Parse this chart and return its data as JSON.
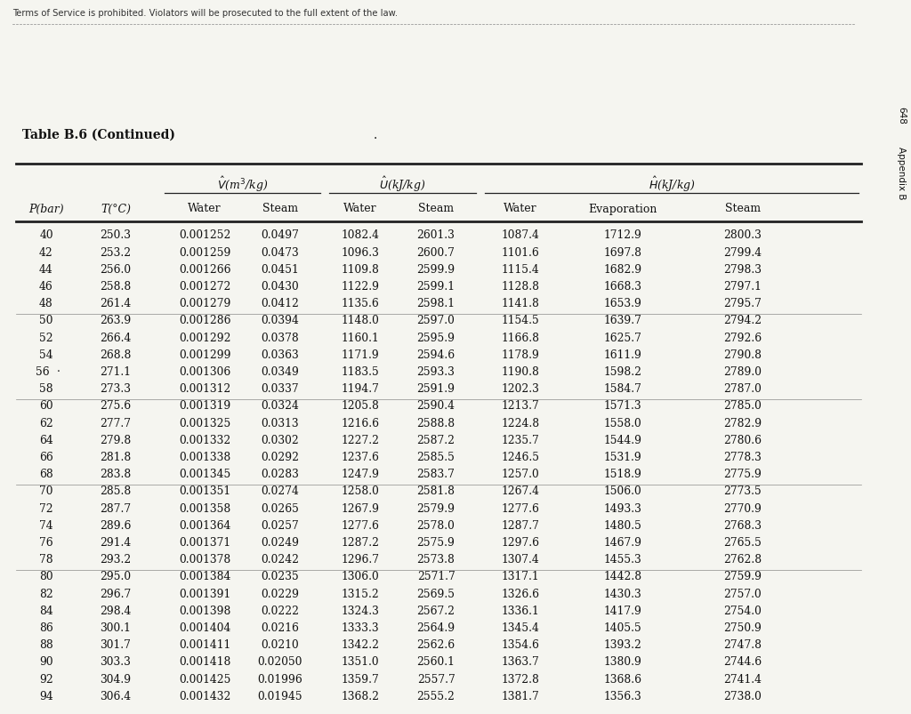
{
  "title": "Table B.6 (Continued)",
  "watermark": "Terms of Service is prohibited. Violators will be prosecuted to the full extent of the law.",
  "side_text": "648  Appendix B",
  "rows": [
    [
      "40",
      "250.3",
      "0.001252",
      "0.0497",
      "1082.4",
      "2601.3",
      "1087.4",
      "1712.9",
      "2800.3"
    ],
    [
      "42",
      "253.2",
      "0.001259",
      "0.0473",
      "1096.3",
      "2600.7",
      "1101.6",
      "1697.8",
      "2799.4"
    ],
    [
      "44",
      "256.0",
      "0.001266",
      "0.0451",
      "1109.8",
      "2599.9",
      "1115.4",
      "1682.9",
      "2798.3"
    ],
    [
      "46",
      "258.8",
      "0.001272",
      "0.0430",
      "1122.9",
      "2599.1",
      "1128.8",
      "1668.3",
      "2797.1"
    ],
    [
      "48",
      "261.4",
      "0.001279",
      "0.0412",
      "1135.6",
      "2598.1",
      "1141.8",
      "1653.9",
      "2795.7"
    ],
    [
      "50",
      "263.9",
      "0.001286",
      "0.0394",
      "1148.0",
      "2597.0",
      "1154.5",
      "1639.7",
      "2794.2"
    ],
    [
      "52",
      "266.4",
      "0.001292",
      "0.0378",
      "1160.1",
      "2595.9",
      "1166.8",
      "1625.7",
      "2792.6"
    ],
    [
      "54",
      "268.8",
      "0.001299",
      "0.0363",
      "1171.9",
      "2594.6",
      "1178.9",
      "1611.9",
      "2790.8"
    ],
    [
      "56",
      "271.1",
      "0.001306",
      "0.0349",
      "1183.5",
      "2593.3",
      "1190.8",
      "1598.2",
      "2789.0"
    ],
    [
      "58",
      "273.3",
      "0.001312",
      "0.0337",
      "1194.7",
      "2591.9",
      "1202.3",
      "1584.7",
      "2787.0"
    ],
    [
      "60",
      "275.6",
      "0.001319",
      "0.0324",
      "1205.8",
      "2590.4",
      "1213.7",
      "1571.3",
      "2785.0"
    ],
    [
      "62",
      "277.7",
      "0.001325",
      "0.0313",
      "1216.6",
      "2588.8",
      "1224.8",
      "1558.0",
      "2782.9"
    ],
    [
      "64",
      "279.8",
      "0.001332",
      "0.0302",
      "1227.2",
      "2587.2",
      "1235.7",
      "1544.9",
      "2780.6"
    ],
    [
      "66",
      "281.8",
      "0.001338",
      "0.0292",
      "1237.6",
      "2585.5",
      "1246.5",
      "1531.9",
      "2778.3"
    ],
    [
      "68",
      "283.8",
      "0.001345",
      "0.0283",
      "1247.9",
      "2583.7",
      "1257.0",
      "1518.9",
      "2775.9"
    ],
    [
      "70",
      "285.8",
      "0.001351",
      "0.0274",
      "1258.0",
      "2581.8",
      "1267.4",
      "1506.0",
      "2773.5"
    ],
    [
      "72",
      "287.7",
      "0.001358",
      "0.0265",
      "1267.9",
      "2579.9",
      "1277.6",
      "1493.3",
      "2770.9"
    ],
    [
      "74",
      "289.6",
      "0.001364",
      "0.0257",
      "1277.6",
      "2578.0",
      "1287.7",
      "1480.5",
      "2768.3"
    ],
    [
      "76",
      "291.4",
      "0.001371",
      "0.0249",
      "1287.2",
      "2575.9",
      "1297.6",
      "1467.9",
      "2765.5"
    ],
    [
      "78",
      "293.2",
      "0.001378",
      "0.0242",
      "1296.7",
      "2573.8",
      "1307.4",
      "1455.3",
      "2762.8"
    ],
    [
      "80",
      "295.0",
      "0.001384",
      "0.0235",
      "1306.0",
      "2571.7",
      "1317.1",
      "1442.8",
      "2759.9"
    ],
    [
      "82",
      "296.7",
      "0.001391",
      "0.0229",
      "1315.2",
      "2569.5",
      "1326.6",
      "1430.3",
      "2757.0"
    ],
    [
      "84",
      "298.4",
      "0.001398",
      "0.0222",
      "1324.3",
      "2567.2",
      "1336.1",
      "1417.9",
      "2754.0"
    ],
    [
      "86",
      "300.1",
      "0.001404",
      "0.0216",
      "1333.3",
      "2564.9",
      "1345.4",
      "1405.5",
      "2750.9"
    ],
    [
      "88",
      "301.7",
      "0.001411",
      "0.0210",
      "1342.2",
      "2562.6",
      "1354.6",
      "1393.2",
      "2747.8"
    ],
    [
      "90",
      "303.3",
      "0.001418",
      "0.02050",
      "1351.0",
      "2560.1",
      "1363.7",
      "1380.9",
      "2744.6"
    ],
    [
      "92",
      "304.9",
      "0.001425",
      "0.01996",
      "1359.7",
      "2557.7",
      "1372.8",
      "1368.6",
      "2741.4"
    ],
    [
      "94",
      "306.4",
      "0.001432",
      "0.01945",
      "1368.2",
      "2555.2",
      "1381.7",
      "1356.3",
      "2738.0"
    ]
  ],
  "group_breaks": [
    4,
    9,
    14,
    19
  ],
  "special_dot_row": 8,
  "background_color": "#f5f5f0",
  "text_color": "#111111",
  "line_color": "#222222"
}
